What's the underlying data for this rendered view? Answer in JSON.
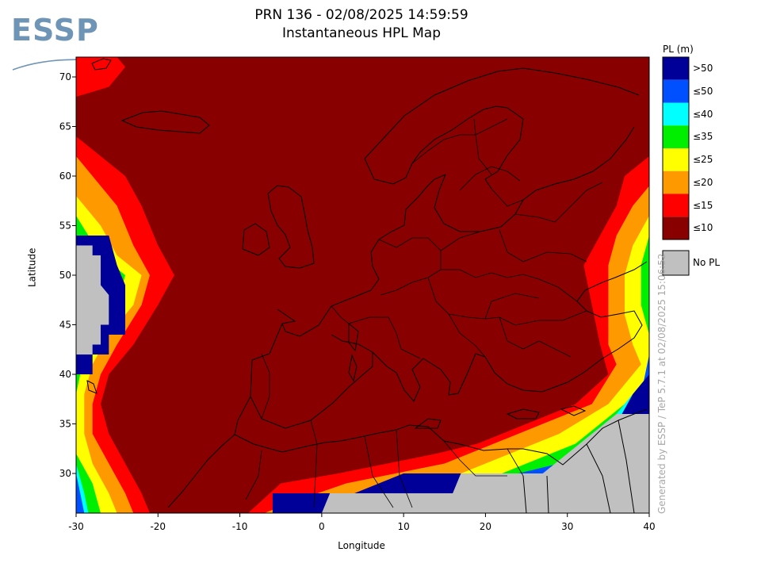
{
  "logo": {
    "text": "ESSP"
  },
  "chart_data": {
    "type": "heatmap",
    "title": "PRN 136 - 02/08/2025 14:59:59",
    "subtitle": "Instantaneous HPL Map",
    "xlabel": "Longitude",
    "ylabel": "Latitude",
    "xlim": [
      -30,
      40
    ],
    "ylim": [
      26,
      72
    ],
    "x_ticks": [
      -30,
      -20,
      -10,
      0,
      10,
      20,
      30,
      40
    ],
    "y_ticks": [
      30,
      35,
      40,
      45,
      50,
      55,
      60,
      65,
      70
    ],
    "legend_title": "PL (m)",
    "legend": [
      {
        "label": ">50",
        "color": "#000099"
      },
      {
        "label": "≤50",
        "color": "#0050ff"
      },
      {
        "label": "≤40",
        "color": "#00ffff"
      },
      {
        "label": "≤35",
        "color": "#00ee00"
      },
      {
        "label": "≤25",
        "color": "#ffff00"
      },
      {
        "label": "≤20",
        "color": "#ff9900"
      },
      {
        "label": "≤15",
        "color": "#ff0000"
      },
      {
        "label": "≤10",
        "color": "#880000"
      }
    ],
    "no_pl": {
      "label": "No PL",
      "color": "#c0c0c0"
    },
    "regions": [
      {
        "category": "≤15",
        "polygon": [
          [
            -30,
            72
          ],
          [
            -25,
            72
          ],
          [
            -24,
            71
          ],
          [
            -26,
            69
          ],
          [
            -30,
            68
          ]
        ]
      },
      {
        "category": "≤15",
        "polygon": [
          [
            -30,
            64
          ],
          [
            -27,
            62
          ],
          [
            -24,
            60
          ],
          [
            -22,
            57
          ],
          [
            -20,
            53
          ],
          [
            -18,
            50
          ],
          [
            -20,
            47
          ],
          [
            -23,
            43
          ],
          [
            -26,
            40
          ],
          [
            -27,
            37
          ],
          [
            -26,
            34
          ],
          [
            -24,
            31
          ],
          [
            -22,
            28
          ],
          [
            -21,
            26
          ],
          [
            -30,
            26
          ]
        ]
      },
      {
        "category": "≤20",
        "polygon": [
          [
            -30,
            62
          ],
          [
            -28,
            60
          ],
          [
            -25,
            57
          ],
          [
            -23,
            53
          ],
          [
            -21,
            50
          ],
          [
            -22,
            47
          ],
          [
            -25,
            43
          ],
          [
            -27,
            40
          ],
          [
            -28,
            37
          ],
          [
            -28,
            34
          ],
          [
            -26,
            31
          ],
          [
            -24,
            28
          ],
          [
            -23,
            26
          ],
          [
            -30,
            26
          ]
        ]
      },
      {
        "category": "≤25",
        "polygon": [
          [
            -30,
            58
          ],
          [
            -27,
            55
          ],
          [
            -25,
            52
          ],
          [
            -22,
            50
          ],
          [
            -23,
            47
          ],
          [
            -26,
            44
          ],
          [
            -28,
            41
          ],
          [
            -29,
            38
          ],
          [
            -29,
            34
          ],
          [
            -28,
            31
          ],
          [
            -26,
            28
          ],
          [
            -25,
            26
          ],
          [
            -30,
            26
          ]
        ]
      },
      {
        "category": "≤35",
        "polygon": [
          [
            -30,
            56
          ],
          [
            -27,
            52
          ],
          [
            -24,
            50
          ],
          [
            -25,
            47
          ],
          [
            -28,
            43
          ],
          [
            -29.5,
            40
          ],
          [
            -30,
            38
          ]
        ]
      },
      {
        "category": "≤35",
        "polygon": [
          [
            -30,
            32
          ],
          [
            -28,
            29
          ],
          [
            -27,
            26
          ],
          [
            -30,
            26
          ]
        ]
      },
      {
        "category": "≤40",
        "polygon": [
          [
            -30,
            31
          ],
          [
            -29,
            28
          ],
          [
            -28.5,
            26
          ],
          [
            -30,
            26
          ]
        ]
      },
      {
        "category": "≤50",
        "polygon": [
          [
            -30,
            30
          ],
          [
            -29.5,
            28
          ],
          [
            -29,
            26
          ],
          [
            -30,
            26
          ]
        ]
      },
      {
        "category": ">50",
        "polygon": [
          [
            -30,
            54
          ],
          [
            -26,
            54
          ],
          [
            -25,
            51
          ],
          [
            -24,
            49
          ],
          [
            -24,
            44
          ],
          [
            -26,
            44
          ],
          [
            -26,
            42
          ],
          [
            -28,
            42
          ],
          [
            -28,
            40
          ],
          [
            -30,
            40
          ]
        ]
      },
      {
        "category": "No PL",
        "polygon": [
          [
            -30,
            53
          ],
          [
            -28,
            53
          ],
          [
            -28,
            52
          ],
          [
            -27,
            52
          ],
          [
            -27,
            49
          ],
          [
            -26,
            48
          ],
          [
            -26,
            45
          ],
          [
            -27,
            45
          ],
          [
            -27,
            43
          ],
          [
            -28,
            43
          ],
          [
            -28,
            42
          ],
          [
            -30,
            42
          ]
        ]
      },
      {
        "category": "≤15",
        "polygon": [
          [
            40,
            62
          ],
          [
            37,
            60
          ],
          [
            36,
            57
          ],
          [
            34,
            54
          ],
          [
            32,
            51
          ],
          [
            33,
            47
          ],
          [
            34,
            43
          ],
          [
            35,
            40
          ],
          [
            31,
            37
          ],
          [
            25,
            35
          ],
          [
            19,
            33
          ],
          [
            14,
            32
          ],
          [
            8,
            31
          ],
          [
            2,
            30
          ],
          [
            -5,
            29
          ],
          [
            -9,
            26
          ],
          [
            40,
            26
          ]
        ]
      },
      {
        "category": "≤20",
        "polygon": [
          [
            40,
            59
          ],
          [
            38,
            57
          ],
          [
            36,
            54
          ],
          [
            35,
            51
          ],
          [
            35,
            47
          ],
          [
            35,
            43
          ],
          [
            36,
            41
          ],
          [
            33,
            37
          ],
          [
            27,
            35
          ],
          [
            21,
            33
          ],
          [
            15,
            31
          ],
          [
            9,
            30
          ],
          [
            3,
            29
          ],
          [
            -4,
            27
          ],
          [
            -7,
            26
          ],
          [
            40,
            26
          ]
        ]
      },
      {
        "category": "≤25",
        "polygon": [
          [
            40,
            56
          ],
          [
            38,
            53
          ],
          [
            37,
            50
          ],
          [
            37,
            46
          ],
          [
            38,
            43
          ],
          [
            39,
            41
          ],
          [
            35,
            37
          ],
          [
            29,
            34
          ],
          [
            23,
            32
          ],
          [
            17,
            30
          ],
          [
            11,
            29
          ],
          [
            5,
            28
          ],
          [
            -2,
            27
          ],
          [
            -5,
            26
          ],
          [
            40,
            26
          ]
        ]
      },
      {
        "category": "≤35",
        "polygon": [
          [
            40,
            54
          ],
          [
            39,
            51
          ],
          [
            39,
            47
          ],
          [
            40,
            44
          ],
          [
            40,
            40
          ],
          [
            37,
            37
          ],
          [
            31,
            33
          ],
          [
            25,
            31
          ],
          [
            19,
            29
          ],
          [
            13,
            28
          ],
          [
            7,
            27
          ],
          [
            0,
            27
          ],
          [
            -4,
            26
          ],
          [
            40,
            26
          ]
        ]
      },
      {
        "category": "≤40",
        "polygon": [
          [
            40,
            47
          ],
          [
            40,
            40
          ],
          [
            38,
            38
          ],
          [
            33,
            33
          ],
          [
            27,
            30
          ],
          [
            21,
            29
          ],
          [
            15,
            28
          ],
          [
            9,
            27
          ],
          [
            2,
            27
          ],
          [
            -3,
            26
          ],
          [
            40,
            26
          ]
        ]
      },
      {
        "category": "≤50",
        "polygon": [
          [
            40,
            42
          ],
          [
            39,
            38
          ],
          [
            35,
            34
          ],
          [
            29,
            31
          ],
          [
            24,
            30
          ],
          [
            18,
            29
          ],
          [
            12,
            28
          ],
          [
            5,
            27
          ],
          [
            -2,
            26
          ],
          [
            40,
            26
          ]
        ]
      },
      {
        "category": ">50",
        "polygon": [
          [
            40,
            40
          ],
          [
            38,
            38
          ],
          [
            36,
            35
          ],
          [
            33,
            32
          ],
          [
            28,
            30
          ],
          [
            22,
            30
          ],
          [
            17,
            30
          ],
          [
            10,
            30
          ],
          [
            4,
            28
          ],
          [
            -6,
            28
          ],
          [
            -6,
            26
          ],
          [
            40,
            26
          ]
        ]
      },
      {
        "category": "No PL",
        "polygon": [
          [
            40,
            36
          ],
          [
            36,
            36
          ],
          [
            33,
            34
          ],
          [
            30,
            32
          ],
          [
            27,
            30
          ],
          [
            22,
            30
          ],
          [
            17,
            30
          ],
          [
            16,
            28
          ],
          [
            1,
            28
          ],
          [
            0,
            26
          ],
          [
            40,
            26
          ]
        ]
      }
    ]
  },
  "watermark": "Generated by ESSP / TeP 5.7.1 at 02/08/2025 15:06:52"
}
